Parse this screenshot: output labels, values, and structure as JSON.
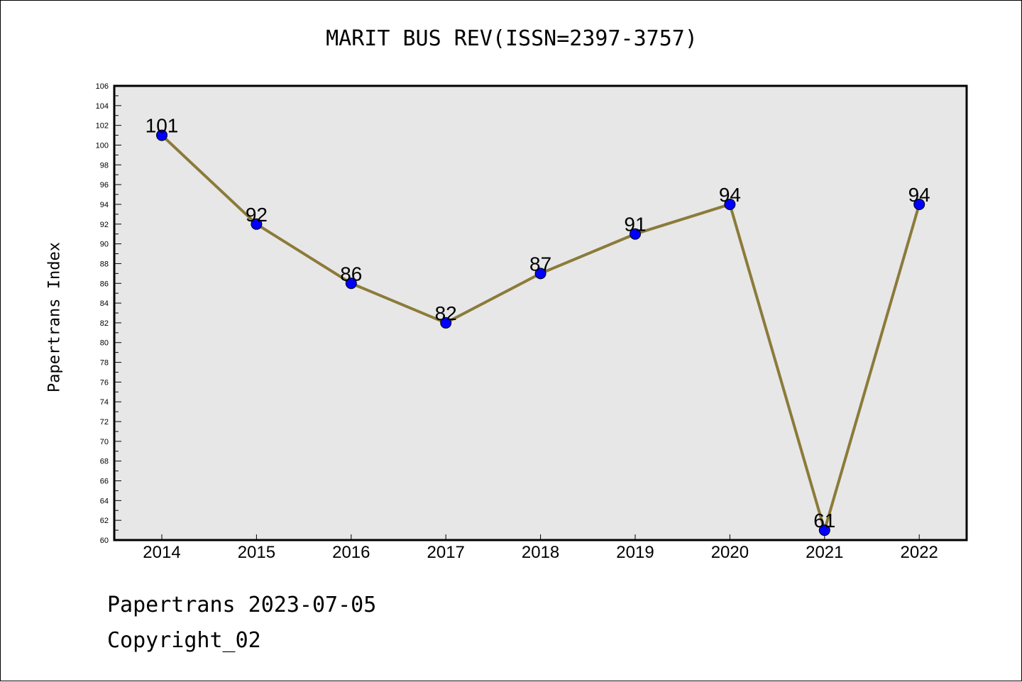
{
  "chart_data": {
    "type": "line",
    "title": "MARIT BUS REV(ISSN=2397-3757)",
    "ylabel": "Papertrans Index",
    "xlabel": "",
    "categories": [
      "2014",
      "2015",
      "2016",
      "2017",
      "2018",
      "2019",
      "2020",
      "2021",
      "2022"
    ],
    "values": [
      101,
      92,
      86,
      82,
      87,
      91,
      94,
      61,
      94
    ],
    "ylim": [
      60,
      106
    ],
    "ytick_step": 2,
    "grid": false,
    "colors": {
      "plot_background": "#e7e7e7",
      "line": "#8b7b3a",
      "marker": "#0000ff"
    }
  },
  "footer": {
    "line1": "Papertrans 2023-07-05",
    "line2": "Copyright_02"
  }
}
